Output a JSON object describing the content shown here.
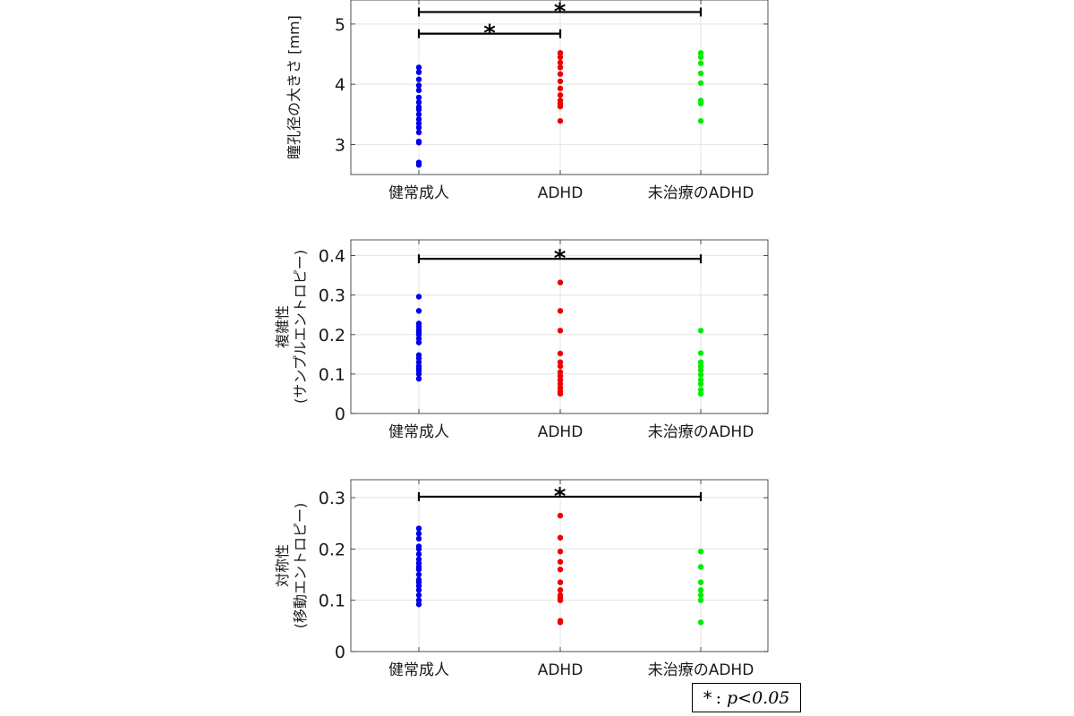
{
  "chart_data": [
    {
      "type": "scatter",
      "ylabel": [
        "瞳孔径の大きさ [mm]"
      ],
      "categories": [
        "健常成人",
        "ADHD",
        "未治療のADHD"
      ],
      "ylim": [
        2.5,
        5.4
      ],
      "yticks": [
        3,
        4,
        5
      ],
      "ytick_labels": [
        "3",
        "4",
        "5"
      ],
      "grid": true,
      "series": [
        {
          "category": "健常成人",
          "color": "#0000ee",
          "values": [
            2.66,
            2.7,
            3.03,
            3.05,
            3.2,
            3.28,
            3.35,
            3.42,
            3.5,
            3.58,
            3.62,
            3.7,
            3.78,
            3.9,
            3.98,
            4.08,
            4.2,
            4.28
          ]
        },
        {
          "category": "ADHD",
          "color": "#ee0000",
          "values": [
            3.39,
            3.63,
            3.68,
            3.73,
            3.82,
            3.93,
            4.05,
            4.17,
            4.28,
            4.36,
            4.45,
            4.52
          ]
        },
        {
          "category": "未治療のADHD",
          "color": "#00ee00",
          "values": [
            3.39,
            3.68,
            3.73,
            4.02,
            4.18,
            4.35,
            4.45,
            4.52
          ]
        }
      ],
      "significance": [
        {
          "from": "健常成人",
          "to": "未治療のADHD",
          "y": 5.2,
          "label": "*"
        },
        {
          "from": "健常成人",
          "to": "ADHD",
          "y": 4.84,
          "label": "*"
        }
      ]
    },
    {
      "type": "scatter",
      "ylabel": [
        "複雑性",
        "(サンプルエントロピー)"
      ],
      "categories": [
        "健常成人",
        "ADHD",
        "未治療のADHD"
      ],
      "ylim": [
        0,
        0.44
      ],
      "yticks": [
        0,
        0.1,
        0.2,
        0.3,
        0.4
      ],
      "ytick_labels": [
        "0",
        "0.1",
        "0.2",
        "0.3",
        "0.4"
      ],
      "grid": true,
      "series": [
        {
          "category": "健常成人",
          "color": "#0000ee",
          "values": [
            0.088,
            0.1,
            0.108,
            0.113,
            0.12,
            0.13,
            0.14,
            0.148,
            0.18,
            0.19,
            0.2,
            0.205,
            0.212,
            0.22,
            0.228,
            0.26,
            0.296
          ]
        },
        {
          "category": "ADHD",
          "color": "#ee0000",
          "values": [
            0.05,
            0.057,
            0.065,
            0.075,
            0.085,
            0.095,
            0.105,
            0.12,
            0.13,
            0.152,
            0.21,
            0.26,
            0.332
          ]
        },
        {
          "category": "未治療のADHD",
          "color": "#00ee00",
          "values": [
            0.05,
            0.06,
            0.075,
            0.085,
            0.098,
            0.11,
            0.12,
            0.13,
            0.153,
            0.21
          ]
        }
      ],
      "significance": [
        {
          "from": "健常成人",
          "to": "未治療のADHD",
          "y": 0.392,
          "label": "*"
        }
      ]
    },
    {
      "type": "scatter",
      "ylabel": [
        "対称性",
        "(移動エントロピー)"
      ],
      "categories": [
        "健常成人",
        "ADHD",
        "未治療のADHD"
      ],
      "ylim": [
        0,
        0.335
      ],
      "yticks": [
        0,
        0.1,
        0.2,
        0.3
      ],
      "ytick_labels": [
        "0",
        "0.1",
        "0.2",
        "0.3"
      ],
      "grid": true,
      "series": [
        {
          "category": "健常成人",
          "color": "#0000ee",
          "values": [
            0.092,
            0.1,
            0.11,
            0.12,
            0.128,
            0.135,
            0.14,
            0.15,
            0.16,
            0.165,
            0.172,
            0.18,
            0.19,
            0.2,
            0.205,
            0.22,
            0.23,
            0.24
          ]
        },
        {
          "category": "ADHD",
          "color": "#ee0000",
          "values": [
            0.057,
            0.06,
            0.1,
            0.105,
            0.11,
            0.12,
            0.135,
            0.16,
            0.175,
            0.195,
            0.222,
            0.265
          ]
        },
        {
          "category": "未治療のADHD",
          "color": "#00ee00",
          "values": [
            0.057,
            0.1,
            0.11,
            0.12,
            0.135,
            0.165,
            0.195
          ]
        }
      ],
      "significance": [
        {
          "from": "健常成人",
          "to": "未治療のADHD",
          "y": 0.302,
          "label": "*"
        }
      ]
    }
  ],
  "legend": {
    "star": "*",
    "colon": ":",
    "pvalue": "p<0.05"
  }
}
